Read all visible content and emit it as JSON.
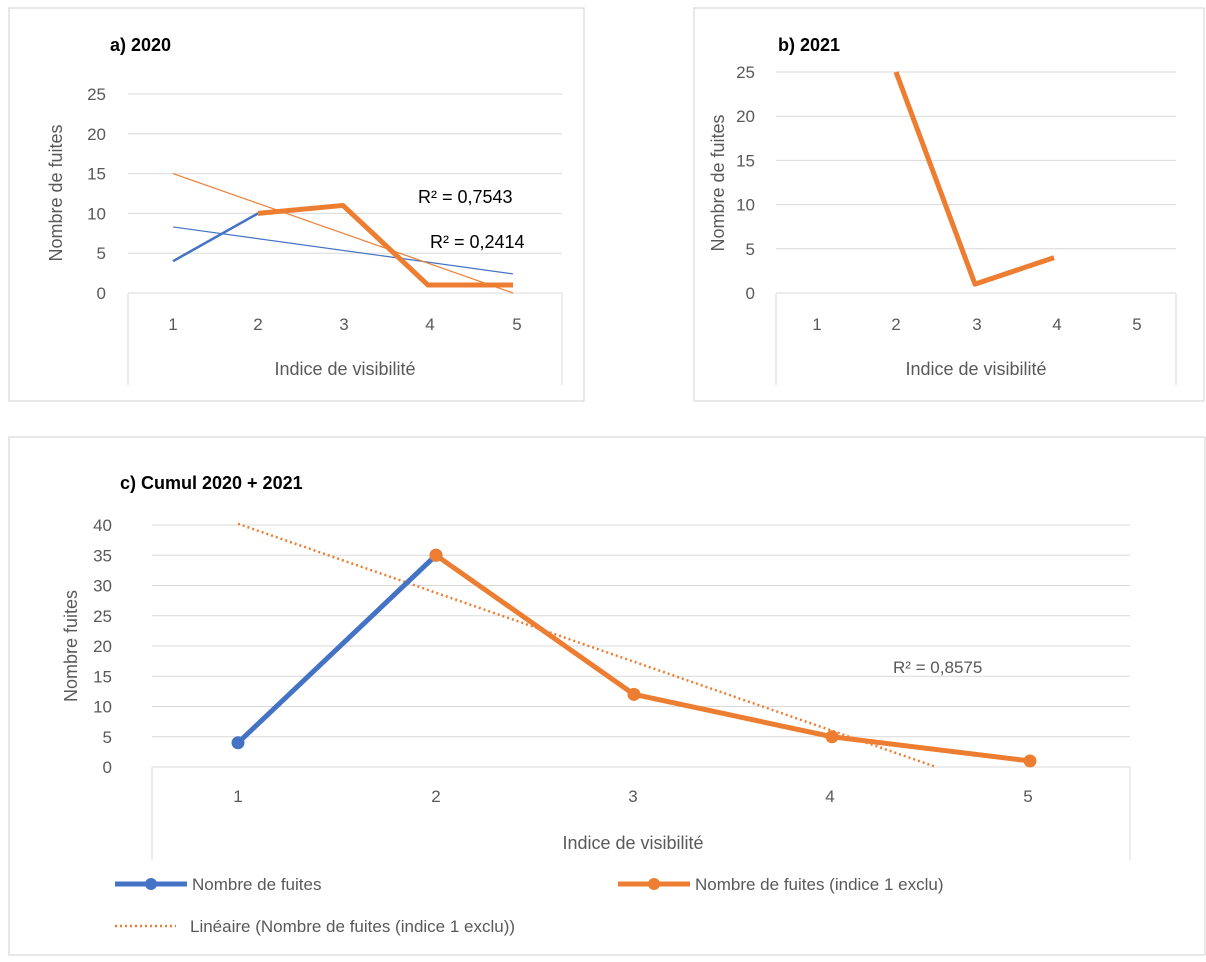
{
  "colors": {
    "blue": "#4472C4",
    "orange": "#ED7D31",
    "grid": "#D9D9D9",
    "text": "#595959"
  },
  "chart_data": [
    {
      "type": "line",
      "title": "a) 2020",
      "xlabel": "Indice de visibilité",
      "ylabel": "Nombre de fuites",
      "categories": [
        1,
        2,
        3,
        4,
        5
      ],
      "ylim": [
        0,
        25
      ],
      "yticks": [
        0,
        5,
        10,
        15,
        20,
        25
      ],
      "grid": true,
      "series": [
        {
          "values": [
            4,
            10,
            null,
            null,
            null
          ],
          "color": "#4472C4"
        },
        {
          "values": [
            null,
            10,
            11,
            1,
            1
          ],
          "color": "#ED7D31"
        }
      ],
      "trendlines": [
        {
          "type": "linear",
          "color": "#4472C4",
          "y_at_x1": 8.3,
          "y_at_x5": 2.4
        },
        {
          "type": "linear",
          "color": "#ED7D31",
          "y_at_x1": 15.0,
          "y_at_x5": 0
        }
      ],
      "annotations": [
        "R² = 0,7543",
        "R² = 0,2414"
      ]
    },
    {
      "type": "line",
      "title": "b) 2021",
      "xlabel": "Indice de visibilité",
      "ylabel": "Nombre de fuites",
      "categories": [
        1,
        2,
        3,
        4,
        5
      ],
      "ylim": [
        0,
        25
      ],
      "yticks": [
        0,
        5,
        10,
        15,
        20,
        25
      ],
      "grid": true,
      "series": [
        {
          "values": [
            null,
            25,
            1,
            4,
            null
          ],
          "color": "#ED7D31"
        }
      ]
    },
    {
      "type": "line",
      "title": "c) Cumul 2020 + 2021",
      "xlabel": "Indice de visibilité",
      "ylabel": "Nombre fuites",
      "categories": [
        1,
        2,
        3,
        4,
        5
      ],
      "ylim": [
        0,
        40
      ],
      "yticks": [
        0,
        5,
        10,
        15,
        20,
        25,
        30,
        35,
        40
      ],
      "grid": true,
      "legend_position": "bottom",
      "series": [
        {
          "name": "Nombre de fuites",
          "values": [
            4,
            35,
            null,
            null,
            null
          ],
          "color": "#4472C4"
        },
        {
          "name": "Nombre de fuites (indice 1 exclu)",
          "values": [
            null,
            35,
            12,
            5,
            1
          ],
          "color": "#ED7D31"
        }
      ],
      "trendlines": [
        {
          "name": "Linéaire (Nombre de fuites (indice 1 exclu))",
          "type": "linear",
          "style": "dotted",
          "color": "#ED7D31",
          "y_at_x1": 40.2,
          "y_at_x5": -5.4
        }
      ],
      "annotations": [
        "R² = 0,8575"
      ]
    }
  ]
}
